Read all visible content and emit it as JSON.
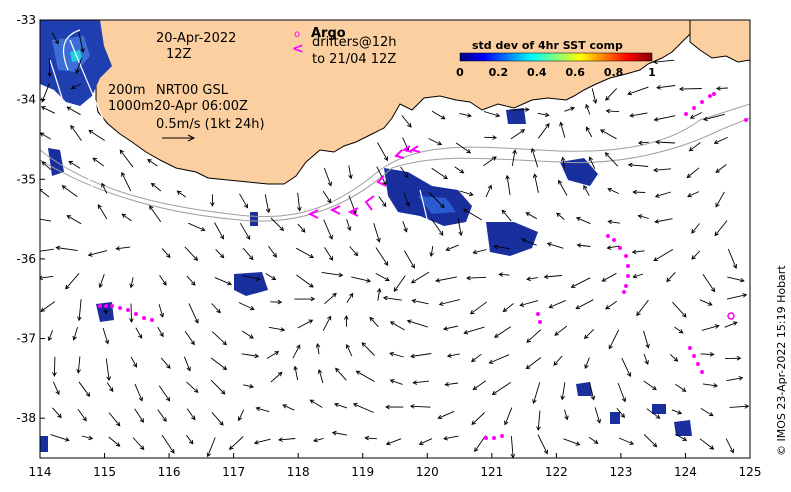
{
  "map": {
    "x_ticks": [
      "114",
      "115",
      "116",
      "117",
      "118",
      "119",
      "120",
      "121",
      "122",
      "123",
      "124",
      "125"
    ],
    "y_ticks": [
      "-33",
      "-34",
      "-35",
      "-36",
      "-37",
      "-38"
    ],
    "lon_range": [
      114,
      125
    ],
    "lat_range": [
      -38.5,
      -33
    ],
    "land_color": "#fccfa0",
    "sea_color": "#ffffff"
  },
  "annotations": {
    "date": "20-Apr-2022",
    "time": "12Z",
    "depth_200": "200m",
    "depth_1000": "1000m",
    "product": "NRT00 GSL",
    "product_time": "20-Apr 06:00Z",
    "scale": "0.5m/s (1kt 24h)",
    "argo_marker": "o",
    "argo_label": "Argo",
    "drifter_marker": "<",
    "drifter_label": "drifters@12h",
    "drifter_date": "to 21/04 12Z"
  },
  "colorbar": {
    "title": "std dev of 4hr SST comp",
    "ticks": [
      "0",
      "0.2",
      "0.4",
      "0.6",
      "0.8",
      "1"
    ],
    "range": [
      0,
      1
    ],
    "colors": [
      "#00007f",
      "#0000ff",
      "#007fff",
      "#00ffff",
      "#7fff7f",
      "#ffff00",
      "#ff7f00",
      "#ff0000",
      "#7f0000"
    ]
  },
  "credit": "© IMOS 23-Apr-2022 15:19 Hobart",
  "overlay_colors": {
    "drifter": "#ff00ff",
    "argo": "#ff00ff",
    "isobath": "#a0a0a0",
    "streamline": "#ffffff"
  }
}
